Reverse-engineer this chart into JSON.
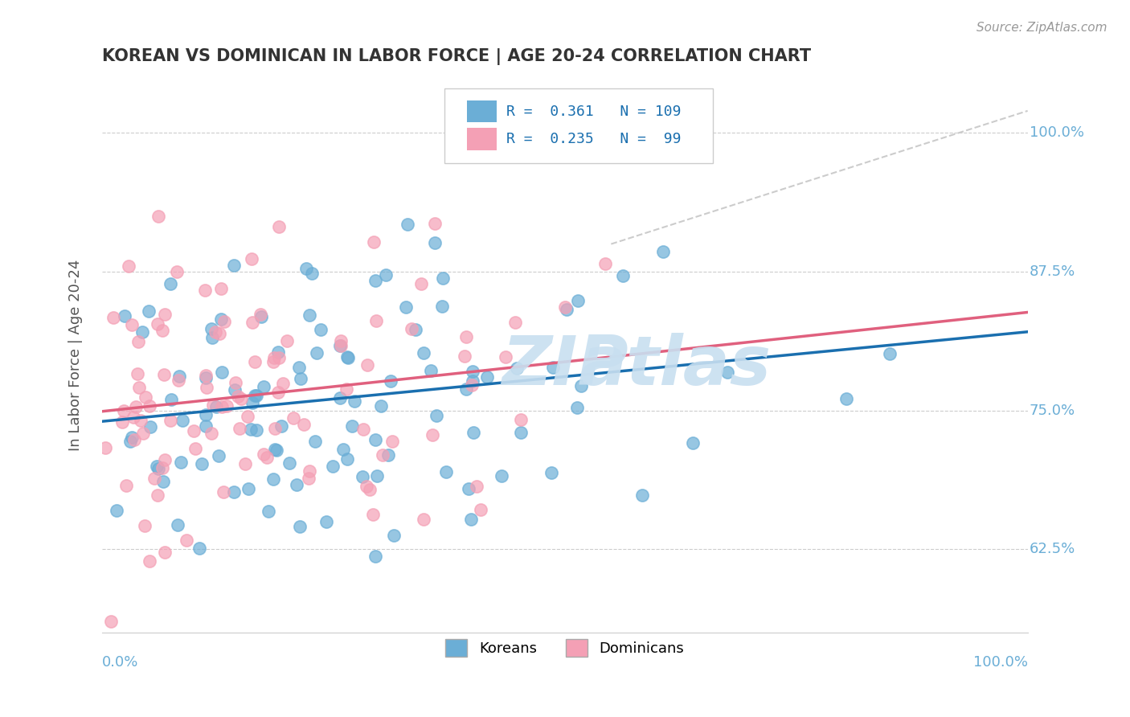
{
  "title": "KOREAN VS DOMINICAN IN LABOR FORCE | AGE 20-24 CORRELATION CHART",
  "source": "Source: ZipAtlas.com",
  "xlabel": "",
  "ylabel": "In Labor Force | Age 20-24",
  "xlim": [
    0.0,
    1.0
  ],
  "ylim": [
    0.55,
    1.05
  ],
  "xticks": [
    0.0,
    0.25,
    0.5,
    0.75,
    1.0
  ],
  "xtick_labels": [
    "0.0%",
    "",
    "",
    "",
    "100.0%"
  ],
  "ytick_labels": [
    "62.5%",
    "75.0%",
    "87.5%",
    "100.0%"
  ],
  "yticks": [
    0.625,
    0.75,
    0.875,
    1.0
  ],
  "korean_R": 0.361,
  "korean_N": 109,
  "dominican_R": 0.235,
  "dominican_N": 99,
  "blue_color": "#6baed6",
  "pink_color": "#f4a0b5",
  "blue_line_color": "#1a6faf",
  "pink_line_color": "#e0607e",
  "legend_text_color": "#1a6faf",
  "title_color": "#333333",
  "axis_color": "#6baed6",
  "watermark_color": "#c8dff0",
  "background_color": "#ffffff",
  "grid_color": "#cccccc"
}
